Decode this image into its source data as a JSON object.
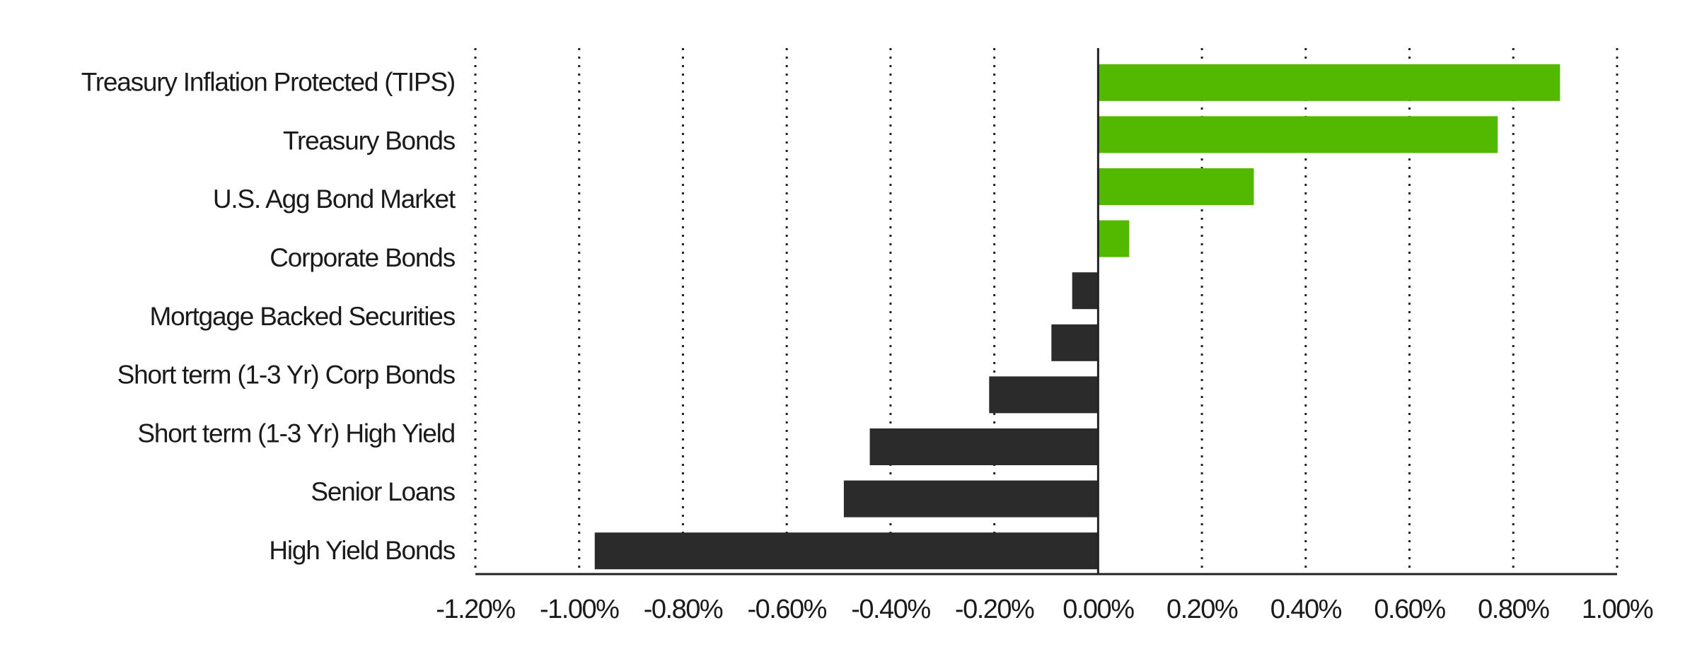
{
  "chart_data": {
    "type": "hbar",
    "categories": [
      "Treasury Inflation Protected (TIPS)",
      "Treasury Bonds",
      "U.S. Agg Bond Market",
      "Corporate Bonds",
      "Mortgage Backed Securities",
      null,
      "Short term (1-3 Yr) Corp Bonds",
      "Short term (1-3 Yr) High Yield",
      "Senior Loans",
      "High Yield Bonds"
    ],
    "values": [
      0.89,
      0.77,
      0.3,
      0.06,
      -0.05,
      -0.09,
      -0.21,
      -0.44,
      -0.49,
      -0.97
    ],
    "positive_color": "#52b800",
    "negative_color": "#2b2b2b",
    "xlim": [
      -1.2,
      1.0
    ],
    "xticks": [
      {
        "value": -1.2,
        "label": "-1.20%"
      },
      {
        "value": -1.0,
        "label": "-1.00%"
      },
      {
        "value": -0.8,
        "label": "-0.80%"
      },
      {
        "value": -0.6,
        "label": "-0.60%"
      },
      {
        "value": -0.4,
        "label": "-0.40%"
      },
      {
        "value": -0.2,
        "label": "-0.20%"
      },
      {
        "value": 0,
        "label": "0.00%"
      },
      {
        "value": 0.2,
        "label": "0.20%"
      },
      {
        "value": 0.4,
        "label": "0.40%"
      },
      {
        "value": 0.6,
        "label": "0.60%"
      },
      {
        "value": 0.8,
        "label": "0.80%"
      },
      {
        "value": 1.0,
        "label": "1.00%"
      }
    ],
    "grid": true
  }
}
